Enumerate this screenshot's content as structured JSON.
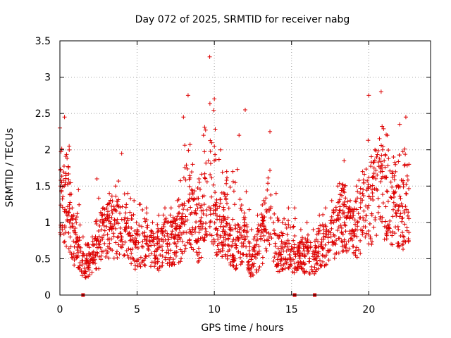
{
  "chart_data": {
    "type": "scatter",
    "title": "Day 072 of 2025, SRMTID for receiver nabg",
    "xlabel": "GPS time / hours",
    "ylabel": "SRMTID / TECUs",
    "xlim": [
      0,
      24
    ],
    "ylim": [
      0,
      3.5
    ],
    "x_ticks": [
      0,
      5,
      10,
      15,
      20
    ],
    "x_tick_labels": [
      "0",
      "5",
      "10",
      "15",
      "20"
    ],
    "y_ticks": [
      0,
      0.5,
      1,
      1.5,
      2,
      2.5,
      3,
      3.5
    ],
    "y_tick_labels": [
      "0",
      "0.5",
      "1",
      "1.5",
      "2",
      "2.5",
      "3",
      "3.5"
    ],
    "grid": true,
    "marker": "+",
    "color": "#dd0000",
    "series": [
      {
        "name": "SRMTID",
        "description": "Dense scatter of ~2000 samples per GPS hour; envelope summarized as (hour, typical, peak) triples",
        "envelope": [
          [
            0.0,
            1.3,
            2.3
          ],
          [
            0.3,
            1.2,
            2.45
          ],
          [
            0.6,
            1.1,
            2.05
          ],
          [
            0.9,
            0.7,
            1.1
          ],
          [
            1.2,
            0.6,
            1.45
          ],
          [
            1.5,
            0.4,
            0.8
          ],
          [
            1.8,
            0.35,
            0.7
          ],
          [
            2.1,
            0.5,
            0.8
          ],
          [
            2.4,
            0.6,
            1.6
          ],
          [
            2.8,
            0.8,
            1.2
          ],
          [
            3.2,
            0.9,
            1.4
          ],
          [
            3.6,
            0.9,
            1.5
          ],
          [
            4.0,
            0.95,
            1.95
          ],
          [
            4.4,
            0.8,
            1.4
          ],
          [
            4.8,
            0.6,
            1.3
          ],
          [
            5.2,
            0.7,
            1.25
          ],
          [
            5.6,
            0.7,
            1.2
          ],
          [
            6.0,
            0.6,
            1.0
          ],
          [
            6.4,
            0.6,
            1.1
          ],
          [
            6.8,
            0.7,
            1.2
          ],
          [
            7.2,
            0.7,
            1.2
          ],
          [
            7.6,
            0.75,
            1.3
          ],
          [
            8.0,
            0.9,
            2.45
          ],
          [
            8.3,
            1.3,
            2.75
          ],
          [
            8.6,
            1.0,
            1.8
          ],
          [
            9.0,
            0.7,
            1.6
          ],
          [
            9.3,
            1.1,
            2.2
          ],
          [
            9.7,
            1.5,
            3.28
          ],
          [
            10.0,
            1.0,
            2.7
          ],
          [
            10.4,
            0.9,
            2.0
          ],
          [
            10.8,
            0.8,
            1.7
          ],
          [
            11.2,
            0.6,
            1.7
          ],
          [
            11.6,
            0.7,
            2.2
          ],
          [
            12.0,
            0.8,
            2.55
          ],
          [
            12.4,
            0.4,
            0.9
          ],
          [
            12.8,
            0.6,
            1.1
          ],
          [
            13.2,
            0.8,
            1.3
          ],
          [
            13.6,
            1.2,
            2.25
          ],
          [
            14.0,
            0.6,
            1.4
          ],
          [
            14.4,
            0.5,
            1.0
          ],
          [
            14.8,
            0.6,
            1.2
          ],
          [
            15.2,
            0.5,
            1.2
          ],
          [
            15.6,
            0.5,
            0.9
          ],
          [
            16.0,
            0.55,
            1.0
          ],
          [
            16.4,
            0.5,
            0.9
          ],
          [
            16.8,
            0.6,
            1.1
          ],
          [
            17.2,
            0.7,
            1.2
          ],
          [
            17.6,
            0.8,
            1.3
          ],
          [
            18.0,
            0.9,
            1.5
          ],
          [
            18.4,
            1.1,
            1.85
          ],
          [
            18.8,
            0.8,
            1.3
          ],
          [
            19.2,
            0.9,
            1.5
          ],
          [
            19.6,
            1.1,
            1.7
          ],
          [
            20.0,
            1.2,
            2.75
          ],
          [
            20.4,
            1.3,
            2.0
          ],
          [
            20.8,
            1.5,
            2.8
          ],
          [
            21.2,
            1.3,
            2.2
          ],
          [
            21.6,
            1.2,
            1.9
          ],
          [
            22.0,
            1.2,
            2.35
          ],
          [
            22.4,
            1.1,
            2.45
          ],
          [
            22.6,
            0.9,
            1.8
          ]
        ]
      }
    ],
    "zero_markers_x": [
      1.5,
      15.2,
      16.5
    ]
  }
}
